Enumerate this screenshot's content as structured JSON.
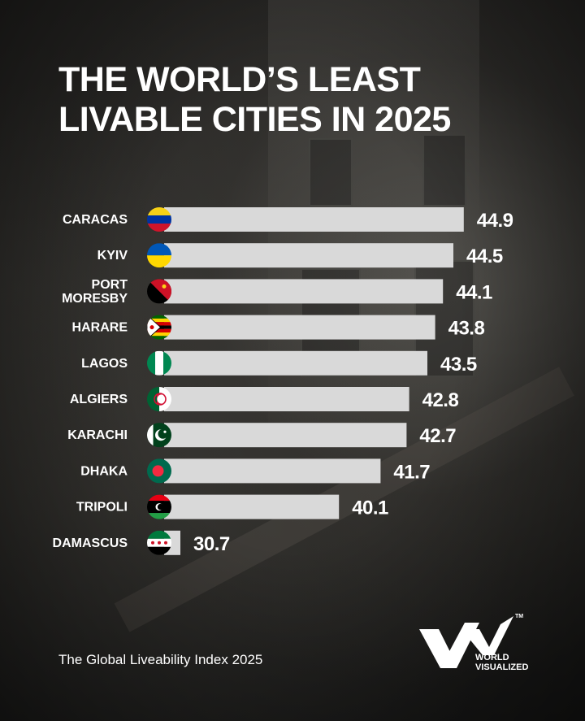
{
  "title": {
    "line1": "THE WORLD’S LEAST",
    "line2": "LIVABLE CITIES IN 2025"
  },
  "chart_data": {
    "type": "bar",
    "orientation": "horizontal",
    "categories": [
      "CARACAS",
      "KYIV",
      "PORT MORESBY",
      "HARARE",
      "LAGOS",
      "ALGIERS",
      "KARACHI",
      "DHAKA",
      "TRIPOLI",
      "DAMASCUS"
    ],
    "category_lines": [
      [
        "CARACAS"
      ],
      [
        "KYIV"
      ],
      [
        "PORT",
        "MORESBY"
      ],
      [
        "HARARE"
      ],
      [
        "LAGOS"
      ],
      [
        "ALGIERS"
      ],
      [
        "KARACHI"
      ],
      [
        "DHAKA"
      ],
      [
        "TRIPOLI"
      ],
      [
        "DAMASCUS"
      ]
    ],
    "values": [
      44.9,
      44.5,
      44.1,
      43.8,
      43.5,
      42.8,
      42.7,
      41.7,
      40.1,
      30.7
    ],
    "value_labels": [
      "44.9",
      "44.5",
      "44.1",
      "43.8",
      "43.5",
      "42.8",
      "42.7",
      "41.7",
      "40.1",
      "30.7"
    ],
    "flags": [
      "venezuela-flag-icon",
      "ukraine-flag-icon",
      "papua-new-guinea-flag-icon",
      "zimbabwe-flag-icon",
      "nigeria-flag-icon",
      "algeria-flag-icon",
      "pakistan-flag-icon",
      "bangladesh-flag-icon",
      "libya-flag-icon",
      "syria-flag-icon"
    ],
    "bar_color": "#d9d9d9",
    "grid": false
  },
  "source": "The Global Liveability Index 2025",
  "logo": {
    "line1": "WORLD",
    "line2": "VISUALIZED",
    "tm": "TM"
  }
}
